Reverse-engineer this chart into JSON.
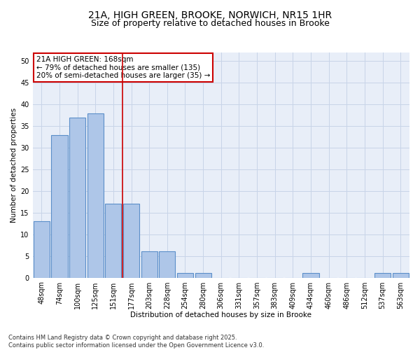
{
  "title_line1": "21A, HIGH GREEN, BROOKE, NORWICH, NR15 1HR",
  "title_line2": "Size of property relative to detached houses in Brooke",
  "xlabel": "Distribution of detached houses by size in Brooke",
  "ylabel": "Number of detached properties",
  "categories": [
    "48sqm",
    "74sqm",
    "100sqm",
    "125sqm",
    "151sqm",
    "177sqm",
    "203sqm",
    "228sqm",
    "254sqm",
    "280sqm",
    "306sqm",
    "331sqm",
    "357sqm",
    "383sqm",
    "409sqm",
    "434sqm",
    "460sqm",
    "486sqm",
    "512sqm",
    "537sqm",
    "563sqm"
  ],
  "values": [
    13,
    33,
    37,
    38,
    17,
    17,
    6,
    6,
    1,
    1,
    0,
    0,
    0,
    0,
    0,
    1,
    0,
    0,
    0,
    1,
    1
  ],
  "bar_color": "#aec6e8",
  "bar_edge_color": "#5b8fc9",
  "bar_edge_width": 0.8,
  "grid_color": "#c8d4e8",
  "bg_color": "#e8eef8",
  "annotation_box_text": "21A HIGH GREEN: 168sqm\n← 79% of detached houses are smaller (135)\n20% of semi-detached houses are larger (35) →",
  "annotation_box_color": "#cc0000",
  "vline_position": 4.5,
  "vline_color": "#cc0000",
  "ylim": [
    0,
    52
  ],
  "yticks": [
    0,
    5,
    10,
    15,
    20,
    25,
    30,
    35,
    40,
    45,
    50
  ],
  "footer_text": "Contains HM Land Registry data © Crown copyright and database right 2025.\nContains public sector information licensed under the Open Government Licence v3.0.",
  "title_fontsize": 10,
  "subtitle_fontsize": 9,
  "axis_label_fontsize": 7.5,
  "tick_fontsize": 7,
  "annotation_fontsize": 7.5,
  "footer_fontsize": 6
}
